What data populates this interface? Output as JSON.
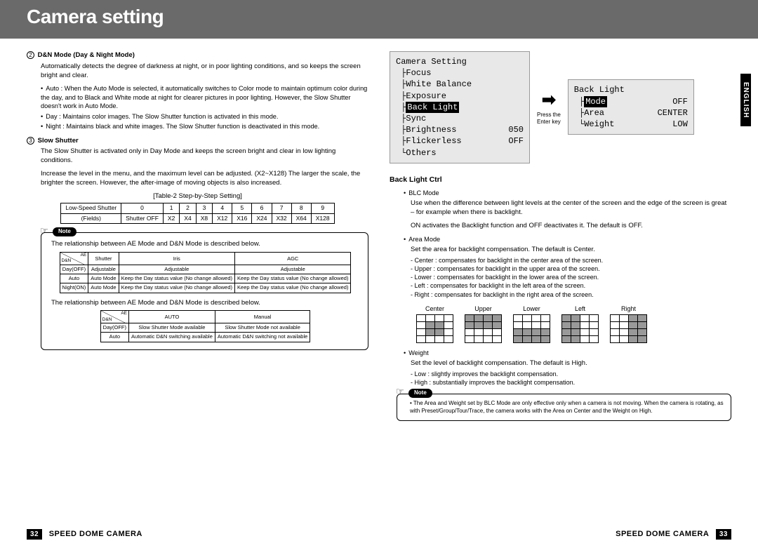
{
  "header": {
    "title": "Camera setting"
  },
  "lang_tab": "ENGLISH",
  "left": {
    "sec2_num": "2",
    "sec2_title": "D&N Mode (Day & Night Mode)",
    "sec2_p1": "Automatically detects the degree of darkness at night, or in poor lighting conditions, and so keeps the screen bright and clear.",
    "sec2_auto": "Auto : When the Auto Mode is selected, it automatically switches to Color mode to maintain optimum color during the day, and to Black and White mode at night for clearer pictures in poor lighting. However, the Slow Shutter doesn't work in Auto Mode.",
    "sec2_day": "Day : Maintains color images. The Slow Shutter function is activated in this mode.",
    "sec2_night": "Night : Maintains black and white images. The Slow Shutter function is deactivated in this mode.",
    "sec3_num": "3",
    "sec3_title": "Slow Shutter",
    "sec3_p1": "The Slow Shutter is activated only in Day Mode and keeps the screen bright and clear in low lighting conditions.",
    "sec3_p2": "Increase the level in the menu, and the maximum level can be adjusted. (X2~X128) The larger the scale, the brighter the screen. However, the after-image of moving objects is also increased.",
    "table2_caption": "[Table-2 Step-by-Step Setting]",
    "shutter_table": {
      "r1": [
        "Low-Speed Shutter",
        "0",
        "1",
        "2",
        "3",
        "4",
        "5",
        "6",
        "7",
        "8",
        "9"
      ],
      "r2": [
        "(Fields)",
        "Shutter OFF",
        "X2",
        "X4",
        "X8",
        "X12",
        "X16",
        "X24",
        "X32",
        "X64",
        "X128"
      ]
    },
    "note_label": "Note",
    "note_p1": "The relationship between AE Mode and D&N Mode is described below.",
    "ae_table1": {
      "diag_top": "AE",
      "diag_bot": "D&N",
      "h": [
        "Shutter",
        "Iris",
        "AGC"
      ],
      "rows": [
        [
          "Day(OFF)",
          "Adjustable",
          "Adjustable",
          "Adjustable"
        ],
        [
          "Auto",
          "Auto Mode",
          "Keep the Day status value (No change allowed)",
          "Keep the Day status value (No change allowed)"
        ],
        [
          "Night(ON)",
          "Auto Mode",
          "Keep the Day status value (No change allowed)",
          "Keep the Day status value (No change allowed)"
        ]
      ]
    },
    "note_p2": "The relationship between AE Mode and D&N Mode is described below.",
    "ae_table2": {
      "diag_top": "AE",
      "diag_bot": "D&N",
      "h": [
        "AUTO",
        "Manual"
      ],
      "rows": [
        [
          "Day(OFF)",
          "Slow Shutter Mode available",
          "Slow Shutter Mode not available"
        ],
        [
          "Auto",
          "Automatic D&N switching available",
          "Automatic D&N switching not available"
        ]
      ]
    }
  },
  "right": {
    "menu1": {
      "title": "Camera Setting",
      "items": [
        {
          "label": "Focus",
          "val": "",
          "inv": false
        },
        {
          "label": "White Balance",
          "val": "",
          "inv": false
        },
        {
          "label": "Exposure",
          "val": "",
          "inv": false
        },
        {
          "label": "Back Light",
          "val": "",
          "inv": true
        },
        {
          "label": "Sync",
          "val": "",
          "inv": false
        },
        {
          "label": "Brightness",
          "val": "050",
          "inv": false
        },
        {
          "label": "Flickerless",
          "val": "OFF",
          "inv": false
        },
        {
          "label": "Others",
          "val": "",
          "inv": false
        }
      ]
    },
    "press": "Press the\nEnter key",
    "menu2": {
      "title": "Back Light",
      "items": [
        {
          "label": "Mode",
          "val": "OFF",
          "inv": true
        },
        {
          "label": "Area",
          "val": "CENTER",
          "inv": false
        },
        {
          "label": "Weight",
          "val": "LOW",
          "inv": false
        }
      ]
    },
    "blc_heading": "Back Light Ctrl",
    "blc_mode_title": "BLC Mode",
    "blc_mode_p": "Use when the difference between light levels at the center of the screen and the edge of the screen is great – for example when there is backlight.",
    "blc_mode_p2": "ON activates the Backlight function and OFF deactivates it. The default is OFF.",
    "area_title": "Area Mode",
    "area_p": "Set the area for backlight compensation. The default is Center.",
    "area_items": [
      "- Center  : compensates for backlight in the center area of the screen.",
      "- Upper   : compensates for backlight in the upper area of the screen.",
      "- Lower   : compensates for backlight in the lower area of the screen.",
      "- Left       : compensates for backlight in the left area of the screen.",
      "- Right    : compensates for backlight in the right area of the screen."
    ],
    "grids": [
      "Center",
      "Upper",
      "Lower",
      "Left",
      "Right"
    ],
    "weight_title": "Weight",
    "weight_p": "Set the level of backlight compensation. The default is High.",
    "weight_items": [
      "- Low   : slightly improves the backlight compensation.",
      "- High  : substantially improves the backlight compensation."
    ],
    "note2_label": "Note",
    "note2_p": "The Area and Weight set by BLC Mode are only effective only when a camera is not moving. When the camera is rotating, as with Preset/Group/Tour/Trace, the camera works with the Area on Center and the Weight on High."
  },
  "footer": {
    "page_left": "32",
    "page_right": "33",
    "text": "SPEED DOME CAMERA"
  }
}
